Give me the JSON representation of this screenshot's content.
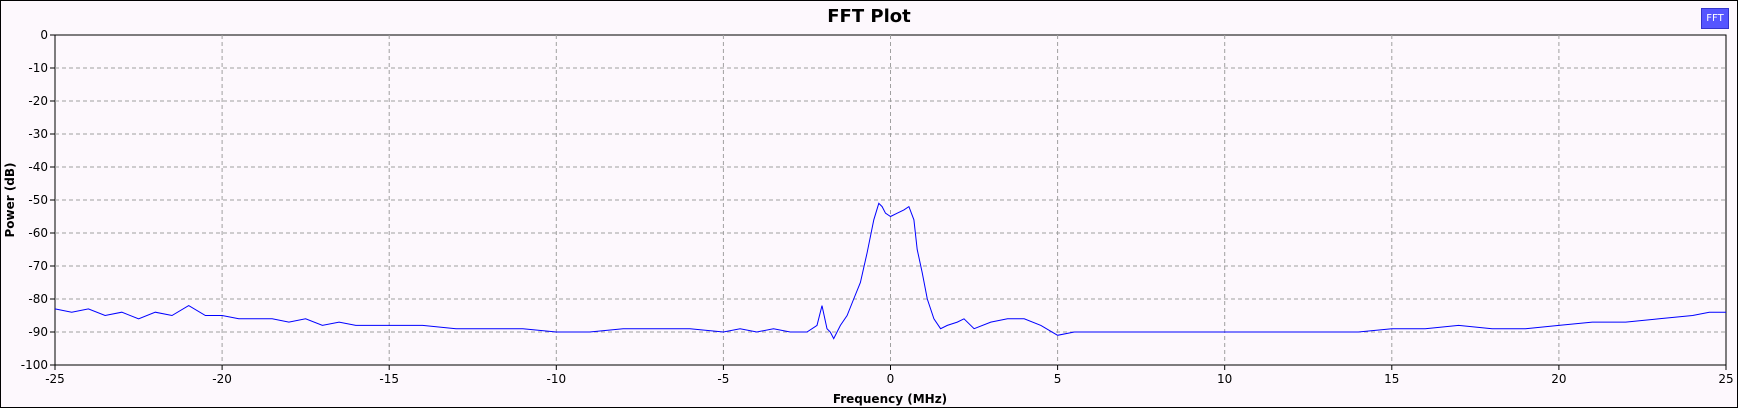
{
  "window": {
    "title": "FFT Plot"
  },
  "legend": {
    "label": "FFT",
    "color": "#5555ff"
  },
  "colors": {
    "trace": "#0000ff",
    "grid": "#a0a0a0",
    "plot_background": "#fdf8fd"
  },
  "chart_data": {
    "type": "line",
    "title": "FFT Plot",
    "xlabel": "Frequency (MHz)",
    "ylabel": "Power (dB)",
    "xlim": [
      -25,
      25
    ],
    "ylim": [
      -100,
      0
    ],
    "xticks": [
      -25,
      -20,
      -15,
      -10,
      -5,
      0,
      5,
      10,
      15,
      20,
      25
    ],
    "yticks": [
      0,
      -10,
      -20,
      -30,
      -40,
      -50,
      -60,
      -70,
      -80,
      -90,
      -100
    ],
    "grid": true,
    "legend_placement": "top-right",
    "series": [
      {
        "name": "FFT",
        "color": "#0000ff",
        "x": [
          -25,
          -24.5,
          -24,
          -23.5,
          -23,
          -22.5,
          -22,
          -21.5,
          -21,
          -20.5,
          -20,
          -19.5,
          -19,
          -18.5,
          -18,
          -17.5,
          -17,
          -16.5,
          -16,
          -15.5,
          -15,
          -14,
          -13,
          -12,
          -11,
          -10,
          -9,
          -8,
          -7,
          -6,
          -5,
          -4.5,
          -4,
          -3.5,
          -3,
          -2.5,
          -2.2,
          -2.05,
          -1.9,
          -1.8,
          -1.7,
          -1.5,
          -1.3,
          -1.1,
          -0.9,
          -0.7,
          -0.5,
          -0.35,
          -0.25,
          -0.15,
          0,
          0.2,
          0.4,
          0.55,
          0.7,
          0.8,
          0.95,
          1.1,
          1.3,
          1.5,
          1.7,
          2,
          2.2,
          2.5,
          3,
          3.5,
          4,
          4.5,
          5,
          5.5,
          6,
          7,
          8,
          9,
          10,
          11,
          12,
          13,
          14,
          15,
          16,
          17,
          18,
          19,
          20,
          21,
          22,
          23,
          24,
          24.5,
          25
        ],
        "values": [
          -83,
          -84,
          -83,
          -85,
          -84,
          -86,
          -84,
          -85,
          -82,
          -85,
          -85,
          -86,
          -86,
          -86,
          -87,
          -86,
          -88,
          -87,
          -88,
          -88,
          -88,
          -88,
          -89,
          -89,
          -89,
          -90,
          -90,
          -89,
          -89,
          -89,
          -90,
          -89,
          -90,
          -89,
          -90,
          -90,
          -88,
          -82,
          -89,
          -90,
          -92,
          -88,
          -85,
          -80,
          -75,
          -66,
          -56,
          -51,
          -52,
          -54,
          -55,
          -54,
          -53,
          -52,
          -56,
          -65,
          -72,
          -80,
          -86,
          -89,
          -88,
          -87,
          -86,
          -89,
          -87,
          -86,
          -86,
          -88,
          -91,
          -90,
          -90,
          -90,
          -90,
          -90,
          -90,
          -90,
          -90,
          -90,
          -90,
          -89,
          -89,
          -88,
          -89,
          -89,
          -88,
          -87,
          -87,
          -86,
          -85,
          -84,
          -84
        ]
      }
    ]
  }
}
